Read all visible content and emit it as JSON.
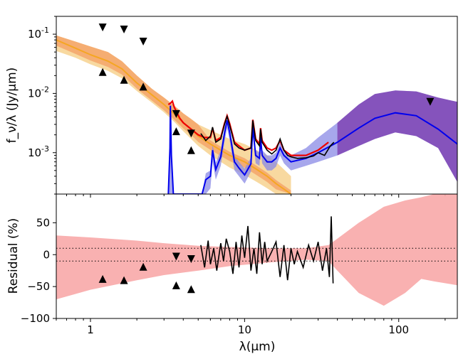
{
  "chart_data": [
    {
      "id": "sed",
      "type": "line",
      "ylabel": "f_ν/λ (Jy/μm)",
      "xscale": "log",
      "yscale": "log",
      "xlim": [
        0.6,
        240
      ],
      "ylim": [
        0.0002,
        0.2
      ],
      "yticks": [
        0.001,
        0.01,
        0.1
      ],
      "ytick_labels": [
        [
          "10",
          "-3"
        ],
        [
          "10",
          "-2"
        ],
        [
          "10",
          "-1"
        ]
      ],
      "colors": {
        "stellar": "#f5a623",
        "stellar_band_dark": "#f4a46a",
        "stellar_band_light": "#f8d9a0",
        "model": "#0000ee",
        "model_band": "#8a8ae6",
        "total": "#ee0000",
        "dust_band": "#7d3fb0",
        "observed": "#000000"
      },
      "series": [
        {
          "name": "stellar-model",
          "x": [
            0.6,
            0.8,
            1.0,
            1.3,
            1.6,
            2.0,
            2.5,
            3.0,
            3.5,
            4.0,
            4.5,
            5.0,
            6.0,
            7.0,
            8.0,
            10.0,
            12.0,
            14.0,
            16.0,
            20.0
          ],
          "y": [
            0.08,
            0.058,
            0.045,
            0.035,
            0.026,
            0.015,
            0.0095,
            0.0065,
            0.0045,
            0.0032,
            0.0025,
            0.0019,
            0.0014,
            0.0011,
            0.0009,
            0.0007,
            0.00052,
            0.0004,
            0.0003,
            0.0002
          ],
          "lower": [
            0.052,
            0.04,
            0.031,
            0.024,
            0.018,
            0.011,
            0.007,
            0.0048,
            0.0033,
            0.0023,
            0.0017,
            0.0013,
            0.0009,
            0.0007,
            0.00056,
            0.00042,
            0.00032,
            0.00025,
            0.0002,
            0.0002
          ],
          "upper": [
            0.095,
            0.075,
            0.062,
            0.05,
            0.035,
            0.02,
            0.012,
            0.0085,
            0.0062,
            0.0046,
            0.0037,
            0.003,
            0.0024,
            0.002,
            0.0017,
            0.0014,
            0.0011,
            0.0009,
            0.0007,
            0.0004
          ]
        },
        {
          "name": "total-model",
          "x": [
            3.2,
            3.3,
            3.4,
            3.5,
            3.6,
            3.8,
            4.0,
            4.5,
            5.0,
            5.5,
            6.0,
            6.2,
            6.5,
            7.0,
            7.4,
            7.7,
            8.0,
            8.6,
            9.2,
            10.0,
            11.0,
            11.3,
            11.8,
            12.5,
            12.7,
            13.0,
            14.0,
            15.0,
            16.0,
            17.0,
            18.0,
            20.0,
            25.0,
            30.0,
            35.0
          ],
          "y": [
            0.0065,
            0.0068,
            0.0074,
            0.0058,
            0.005,
            0.0038,
            0.0032,
            0.0025,
            0.002,
            0.0018,
            0.0018,
            0.0026,
            0.0016,
            0.0018,
            0.0031,
            0.0042,
            0.0031,
            0.0015,
            0.0013,
            0.0011,
            0.0012,
            0.0036,
            0.0017,
            0.0014,
            0.0026,
            0.0016,
            0.0012,
            0.0011,
            0.0012,
            0.0016,
            0.0011,
            0.0009,
            0.0009,
            0.0011,
            0.0015
          ]
        },
        {
          "name": "dust-model",
          "x": [
            3.2,
            3.28,
            3.3,
            3.35,
            3.45,
            5.3,
            5.6,
            6.0,
            6.2,
            6.5,
            7.0,
            7.4,
            7.7,
            8.0,
            8.6,
            9.2,
            10.0,
            11.0,
            11.3,
            11.8,
            12.5,
            12.7,
            13.0,
            14.0,
            15.0,
            16.0,
            17.0,
            18.0,
            20.0,
            25.0,
            30.0,
            40.0,
            55.0,
            70.0,
            95.0,
            130.0,
            180.0,
            240.0
          ],
          "y": [
            0.0002,
            0.0012,
            0.0062,
            0.0009,
            0.0002,
            0.0002,
            0.00035,
            0.0004,
            0.0011,
            0.00052,
            0.00085,
            0.0021,
            0.0035,
            0.0022,
            0.0007,
            0.00055,
            0.00042,
            0.00065,
            0.0027,
            0.0009,
            0.0008,
            0.0018,
            0.0009,
            0.0007,
            0.0007,
            0.0008,
            0.0012,
            0.0009,
            0.0007,
            0.0008,
            0.001,
            0.0015,
            0.0026,
            0.0038,
            0.0047,
            0.0042,
            0.0025,
            0.0014
          ],
          "lower": [
            0.0002,
            0.0002,
            0.0002,
            0.0002,
            0.0002,
            0.0002,
            0.0002,
            0.00025,
            0.0007,
            0.00035,
            0.0006,
            0.0015,
            0.0026,
            0.0016,
            0.0005,
            0.0004,
            0.0003,
            0.00048,
            0.002,
            0.00066,
            0.0006,
            0.0013,
            0.00066,
            0.0005,
            0.0005,
            0.00058,
            0.0009,
            0.00066,
            0.0005,
            0.0006,
            0.0007,
            0.0009,
            0.0013,
            0.0017,
            0.0022,
            0.0019,
            0.0012,
            0.00032
          ],
          "upper": [
            0.0002,
            0.0016,
            0.0075,
            0.0012,
            0.0002,
            0.0002,
            0.00045,
            0.0005,
            0.0014,
            0.00068,
            0.0011,
            0.0027,
            0.0044,
            0.0028,
            0.0009,
            0.0007,
            0.00054,
            0.00082,
            0.0033,
            0.0011,
            0.001,
            0.0022,
            0.0011,
            0.0009,
            0.0009,
            0.001,
            0.0015,
            0.0011,
            0.0009,
            0.0012,
            0.0018,
            0.0032,
            0.0065,
            0.0098,
            0.0112,
            0.0108,
            0.0085,
            0.0072
          ]
        },
        {
          "name": "observed-spectrum",
          "x": [
            5.2,
            5.6,
            6.0,
            6.2,
            6.5,
            7.0,
            7.4,
            7.7,
            8.0,
            8.6,
            9.2,
            10.0,
            11.0,
            11.3,
            11.8,
            12.5,
            12.7,
            13.0,
            14.0,
            15.0,
            16.0,
            17.0,
            18.0,
            19.0,
            20.0,
            22.0,
            25.0,
            28.0,
            30.0,
            33.0,
            36.0,
            38.0
          ],
          "y": [
            0.0021,
            0.0016,
            0.0019,
            0.0027,
            0.0015,
            0.0017,
            0.003,
            0.0041,
            0.0029,
            0.0014,
            0.0012,
            0.0011,
            0.0012,
            0.0035,
            0.0016,
            0.0013,
            0.0025,
            0.0015,
            0.0011,
            0.00095,
            0.0011,
            0.0017,
            0.0011,
            0.0009,
            0.00085,
            0.0008,
            0.00082,
            0.00088,
            0.001,
            0.0009,
            0.0013,
            0.0015
          ]
        }
      ],
      "markers": {
        "upper_limits": [
          [
            1.2,
            0.13
          ],
          [
            1.65,
            0.12
          ],
          [
            2.2,
            0.075
          ],
          [
            3.6,
            0.0045
          ],
          [
            4.5,
            0.0021
          ],
          [
            160,
            0.0072
          ]
        ],
        "lower_limits": [
          [
            1.2,
            0.023
          ],
          [
            1.65,
            0.017
          ],
          [
            2.2,
            0.013
          ],
          [
            3.6,
            0.0023
          ],
          [
            4.5,
            0.0011
          ]
        ]
      }
    },
    {
      "id": "residual",
      "type": "line",
      "xlabel": "λ(μm)",
      "ylabel": "Residual (%)",
      "xscale": "log",
      "xlim": [
        0.6,
        240
      ],
      "ylim": [
        -100,
        95
      ],
      "yticks": [
        -100,
        -50,
        0,
        50
      ],
      "ytick_labels": [
        "−100",
        "−50",
        "0",
        "50"
      ],
      "xticks": [
        1,
        10,
        100
      ],
      "xtick_labels": [
        "1",
        "10",
        "100"
      ],
      "hlines": [
        -10,
        10
      ],
      "colors": {
        "band": "#f8a9a9",
        "line": "#000000"
      },
      "band": {
        "x": [
          0.6,
          1.0,
          2.0,
          3.0,
          5.0,
          8.0,
          15.0,
          25.0,
          35.0,
          40.0,
          55.0,
          80.0,
          110.0,
          140.0,
          170.0,
          240.0
        ],
        "lower": [
          -70,
          -55,
          -40,
          -32,
          -25,
          -18,
          -12,
          -8,
          -10,
          -25,
          -60,
          -80,
          -60,
          -38,
          -42,
          -48
        ],
        "upper": [
          30,
          27,
          22,
          18,
          14,
          12,
          10,
          10,
          15,
          25,
          50,
          75,
          85,
          90,
          95,
          95
        ]
      },
      "residual_line": {
        "x": [
          5.2,
          5.5,
          5.8,
          6.0,
          6.3,
          6.6,
          7.0,
          7.3,
          7.6,
          8.0,
          8.4,
          8.8,
          9.2,
          9.6,
          10.0,
          10.5,
          11.0,
          11.5,
          12.0,
          12.5,
          13.0,
          13.5,
          14.0,
          15.0,
          16.0,
          17.0,
          18.0,
          19.0,
          20.0,
          21.0,
          22.0,
          24.0,
          26.0,
          28.0,
          30.0,
          32.0,
          34.0,
          35.5,
          36.5,
          37.5
        ],
        "y": [
          15,
          -20,
          22,
          -15,
          10,
          -25,
          18,
          -10,
          25,
          5,
          -30,
          20,
          -20,
          30,
          -5,
          45,
          -25,
          10,
          -30,
          35,
          -15,
          20,
          -10,
          5,
          20,
          -35,
          15,
          -40,
          10,
          -15,
          5,
          -20,
          15,
          -10,
          20,
          -25,
          10,
          -35,
          60,
          -45
        ]
      },
      "markers": {
        "upper_limits": [
          [
            3.6,
            -3
          ],
          [
            4.5,
            -7
          ]
        ],
        "lower_limits": [
          [
            1.2,
            -38
          ],
          [
            1.65,
            -40
          ],
          [
            2.2,
            -19
          ],
          [
            3.6,
            -48
          ],
          [
            4.5,
            -54
          ]
        ]
      }
    }
  ]
}
